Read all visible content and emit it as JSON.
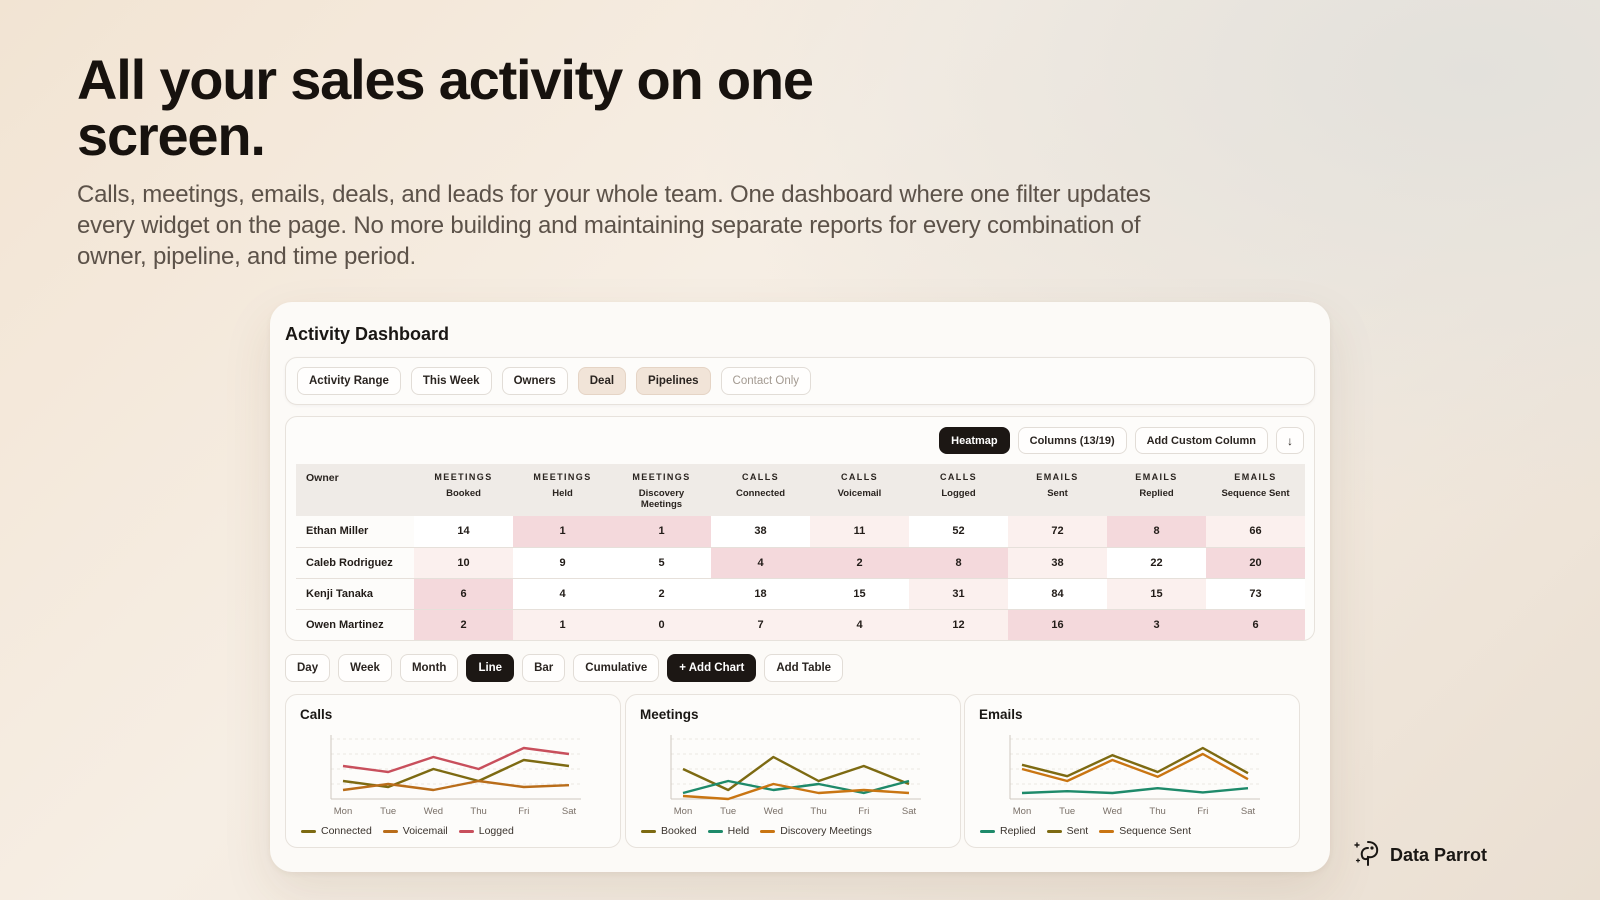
{
  "hero": {
    "title": "All your sales activity on one screen.",
    "subtitle": "Calls, meetings, emails, deals, and leads for your whole team. One dashboard where one filter updates every widget on the page. No more building and maintaining separate reports for every combination of owner, pipeline, and time period."
  },
  "dashboard": {
    "title": "Activity Dashboard",
    "filters": [
      "Activity Range",
      "This Week",
      "Owners",
      "Deal",
      "Pipelines",
      "Contact Only"
    ],
    "table_actions": {
      "heatmap": "Heatmap",
      "columns": "Columns (13/19)",
      "add_custom_column": "Add Custom Column",
      "download_icon": "arrow-down-icon"
    },
    "table": {
      "owner_header": "Owner",
      "columns": [
        {
          "group": "MEETINGS",
          "name": "Booked"
        },
        {
          "group": "MEETINGS",
          "name": "Held"
        },
        {
          "group": "MEETINGS",
          "name": "Discovery Meetings"
        },
        {
          "group": "CALLS",
          "name": "Connected"
        },
        {
          "group": "CALLS",
          "name": "Voicemail"
        },
        {
          "group": "CALLS",
          "name": "Logged"
        },
        {
          "group": "EMAILS",
          "name": "Sent"
        },
        {
          "group": "EMAILS",
          "name": "Replied"
        },
        {
          "group": "EMAILS",
          "name": "Sequence Sent"
        }
      ],
      "rows": [
        {
          "owner": "Ethan Miller",
          "values": [
            14,
            1,
            1,
            38,
            11,
            52,
            72,
            8,
            66
          ],
          "heat": [
            0,
            2,
            2,
            0,
            1,
            0,
            1,
            2,
            1
          ]
        },
        {
          "owner": "Caleb Rodriguez",
          "values": [
            10,
            9,
            5,
            4,
            2,
            8,
            38,
            22,
            20
          ],
          "heat": [
            1,
            0,
            0,
            2,
            2,
            2,
            1,
            0,
            2
          ]
        },
        {
          "owner": "Kenji Tanaka",
          "values": [
            6,
            4,
            2,
            18,
            15,
            31,
            84,
            15,
            73
          ],
          "heat": [
            2,
            0,
            0,
            0,
            0,
            1,
            0,
            1,
            0
          ]
        },
        {
          "owner": "Owen Martinez",
          "values": [
            2,
            1,
            0,
            7,
            4,
            12,
            16,
            3,
            6
          ],
          "heat": [
            2,
            1,
            1,
            1,
            1,
            1,
            2,
            2,
            2
          ]
        }
      ]
    },
    "chart_controls": {
      "granularity": [
        "Day",
        "Week",
        "Month"
      ],
      "types": [
        "Line",
        "Bar",
        "Cumulative"
      ],
      "active_type": "Line",
      "add_chart": "+ Add Chart",
      "add_table": "Add Table"
    }
  },
  "chart_data": [
    {
      "type": "line",
      "title": "Calls",
      "x": [
        "Mon",
        "Tue",
        "Wed",
        "Thu",
        "Fri",
        "Sat"
      ],
      "ylim": [
        0,
        10
      ],
      "grid": true,
      "legend_position": "bottom",
      "series": [
        {
          "name": "Connected",
          "color": "#7d6a12",
          "values": [
            3,
            2,
            5,
            3,
            6.5,
            5.5
          ]
        },
        {
          "name": "Voicemail",
          "color": "#b96d1a",
          "values": [
            1.5,
            2.5,
            1.5,
            3,
            2,
            2.3
          ]
        },
        {
          "name": "Logged",
          "color": "#c84f5c",
          "values": [
            5.5,
            4.5,
            7,
            5,
            8.5,
            7.5
          ]
        }
      ]
    },
    {
      "type": "line",
      "title": "Meetings",
      "x": [
        "Mon",
        "Tue",
        "Wed",
        "Thu",
        "Fri",
        "Sat"
      ],
      "ylim": [
        0,
        10
      ],
      "grid": true,
      "legend_position": "bottom",
      "series": [
        {
          "name": "Booked",
          "color": "#7d6a12",
          "values": [
            5,
            1.5,
            7,
            3,
            5.5,
            2.5
          ]
        },
        {
          "name": "Held",
          "color": "#1e8a6a",
          "values": [
            1,
            3,
            1.5,
            2.5,
            1,
            3
          ]
        },
        {
          "name": "Discovery Meetings",
          "color": "#c97512",
          "values": [
            0.5,
            0,
            2.5,
            1,
            1.5,
            1
          ]
        }
      ]
    },
    {
      "type": "line",
      "title": "Emails",
      "x": [
        "Mon",
        "Tue",
        "Wed",
        "Thu",
        "Fri",
        "Sat"
      ],
      "ylim": [
        0,
        10
      ],
      "grid": true,
      "legend_position": "bottom",
      "series": [
        {
          "name": "Replied",
          "color": "#1e8a6a",
          "values": [
            1,
            1.3,
            1,
            1.8,
            1.1,
            1.8
          ]
        },
        {
          "name": "Sent",
          "color": "#7d6a12",
          "values": [
            5.7,
            3.8,
            7.3,
            4.5,
            8.5,
            4.3
          ]
        },
        {
          "name": "Sequence Sent",
          "color": "#c97512",
          "values": [
            5,
            3,
            6.5,
            3.7,
            7.5,
            3.3
          ]
        }
      ]
    }
  ],
  "brand": {
    "name": "Data Parrot",
    "logo_icon": "parrot-logo-icon"
  }
}
